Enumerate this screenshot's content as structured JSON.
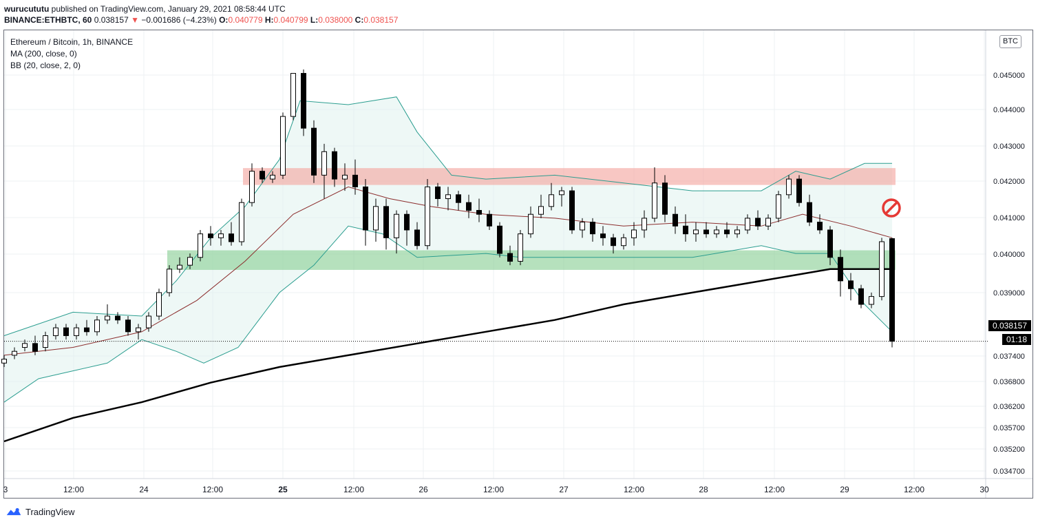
{
  "header": {
    "author": "wurucututu",
    "published_text": "published on TradingView.com, January 29, 2021 08:58:44 UTC",
    "symbol": "BINANCE:ETHBTC, 60",
    "last": "0.038157",
    "arrow": "▼",
    "change": "−0.001686 (−4.23%)",
    "o_label": "O:",
    "o_value": "0.040779",
    "h_label": "H:",
    "h_value": "0.040799",
    "l_label": "L:",
    "l_value": "0.038000",
    "c_label": "C:",
    "c_value": "0.038157"
  },
  "legend": {
    "title": "Ethereum / Bitcoin, 1h, BINANCE",
    "ma": "MA (200, close, 0)",
    "bb": "BB (20, close, 2, 0)"
  },
  "currency_badge": "BTC",
  "price_tag": "0.038157",
  "countdown": "01:18",
  "footer": {
    "brand": "TradingView"
  },
  "colors": {
    "up": "#ffffff",
    "down": "#000000",
    "ma": "#000000",
    "bb_basis": "#8b2c2c",
    "bb_band": "#2a9d8f",
    "bb_fill": "#e0f2ef",
    "resistance_zone": "#f4a9a3",
    "support_zone": "#8fd19a",
    "no_entry": "#e53935"
  },
  "chart_data": {
    "type": "candlestick",
    "title": "Ethereum / Bitcoin, 1h, BINANCE",
    "x_ticks": [
      "3",
      "12:00",
      "24",
      "12:00",
      "25",
      "12:00",
      "26",
      "12:00",
      "27",
      "12:00",
      "28",
      "12:00",
      "29",
      "12:00",
      "30"
    ],
    "y_ticks": [
      "0.045000",
      "0.044000",
      "0.043000",
      "0.042000",
      "0.041000",
      "0.040000",
      "0.039000",
      "0.037400",
      "0.036800",
      "0.036200",
      "0.035700",
      "0.035200",
      "0.034700"
    ],
    "ylim": [
      0.0344,
      0.0462
    ],
    "last_price": 0.038157,
    "zones": [
      {
        "name": "resistance",
        "from": 0.04215,
        "to": 0.04258
      },
      {
        "name": "support",
        "from": 0.03998,
        "to": 0.04048
      }
    ],
    "ma200": [
      [
        0,
        0.0356
      ],
      [
        100,
        0.0362
      ],
      [
        200,
        0.0366
      ],
      [
        300,
        0.0371
      ],
      [
        400,
        0.0375
      ],
      [
        500,
        0.0378
      ],
      [
        600,
        0.0381
      ],
      [
        700,
        0.0384
      ],
      [
        800,
        0.0387
      ],
      [
        900,
        0.0391
      ],
      [
        1000,
        0.0394
      ],
      [
        1100,
        0.0397
      ],
      [
        1200,
        0.04
      ],
      [
        1290,
        0.04
      ]
    ],
    "bb_upper": [
      [
        0,
        0.0383
      ],
      [
        100,
        0.0389
      ],
      [
        200,
        0.0388
      ],
      [
        250,
        0.0397
      ],
      [
        300,
        0.0408
      ],
      [
        350,
        0.0416
      ],
      [
        400,
        0.0428
      ],
      [
        430,
        0.0443
      ],
      [
        500,
        0.0442
      ],
      [
        570,
        0.0444
      ],
      [
        600,
        0.0435
      ],
      [
        650,
        0.0424
      ],
      [
        700,
        0.0423
      ],
      [
        800,
        0.0424
      ],
      [
        900,
        0.0422
      ],
      [
        950,
        0.0421
      ],
      [
        1000,
        0.042
      ],
      [
        1100,
        0.042
      ],
      [
        1150,
        0.0425
      ],
      [
        1200,
        0.0423
      ],
      [
        1250,
        0.0427
      ],
      [
        1290,
        0.0427
      ]
    ],
    "bb_lower": [
      [
        0,
        0.0366
      ],
      [
        50,
        0.0372
      ],
      [
        100,
        0.0374
      ],
      [
        150,
        0.0376
      ],
      [
        200,
        0.0382
      ],
      [
        250,
        0.0379
      ],
      [
        290,
        0.0376
      ],
      [
        340,
        0.038
      ],
      [
        400,
        0.0394
      ],
      [
        450,
        0.0401
      ],
      [
        500,
        0.0411
      ],
      [
        550,
        0.0409
      ],
      [
        600,
        0.0403
      ],
      [
        700,
        0.0404
      ],
      [
        750,
        0.0403
      ],
      [
        850,
        0.0403
      ],
      [
        900,
        0.0403
      ],
      [
        1000,
        0.0403
      ],
      [
        1100,
        0.0406
      ],
      [
        1150,
        0.0404
      ],
      [
        1200,
        0.0404
      ],
      [
        1250,
        0.0391
      ],
      [
        1290,
        0.0384
      ]
    ],
    "bb_basis": [
      [
        0,
        0.0378
      ],
      [
        100,
        0.038
      ],
      [
        200,
        0.0384
      ],
      [
        280,
        0.0392
      ],
      [
        350,
        0.0402
      ],
      [
        420,
        0.0414
      ],
      [
        500,
        0.0421
      ],
      [
        560,
        0.0418
      ],
      [
        620,
        0.0416
      ],
      [
        700,
        0.0414
      ],
      [
        800,
        0.0413
      ],
      [
        900,
        0.0411
      ],
      [
        1000,
        0.0412
      ],
      [
        1100,
        0.0411
      ],
      [
        1160,
        0.0414
      ],
      [
        1230,
        0.0411
      ],
      [
        1290,
        0.0408
      ]
    ],
    "candles": [
      [
        0,
        0.0376,
        0.0378,
        0.0375,
        0.0377
      ],
      [
        15,
        0.0378,
        0.038,
        0.0377,
        0.0379
      ],
      [
        30,
        0.038,
        0.0382,
        0.0379,
        0.0381
      ],
      [
        45,
        0.0381,
        0.0383,
        0.0378,
        0.0379
      ],
      [
        60,
        0.038,
        0.0384,
        0.0379,
        0.0383
      ],
      [
        75,
        0.0383,
        0.0386,
        0.0382,
        0.0385
      ],
      [
        90,
        0.0385,
        0.0386,
        0.0382,
        0.0383
      ],
      [
        105,
        0.0383,
        0.0386,
        0.0382,
        0.0385
      ],
      [
        120,
        0.0385,
        0.0387,
        0.0383,
        0.0384
      ],
      [
        135,
        0.0384,
        0.0388,
        0.0383,
        0.0387
      ],
      [
        150,
        0.0387,
        0.0391,
        0.0386,
        0.0388
      ],
      [
        165,
        0.0388,
        0.0389,
        0.0386,
        0.0387
      ],
      [
        180,
        0.0387,
        0.0388,
        0.0383,
        0.0384
      ],
      [
        195,
        0.0384,
        0.0386,
        0.0382,
        0.0385
      ],
      [
        210,
        0.0385,
        0.0389,
        0.0384,
        0.0388
      ],
      [
        225,
        0.0388,
        0.0395,
        0.0387,
        0.0394
      ],
      [
        240,
        0.0394,
        0.0401,
        0.0393,
        0.04
      ],
      [
        255,
        0.04,
        0.0403,
        0.0399,
        0.0401
      ],
      [
        270,
        0.0401,
        0.0404,
        0.04,
        0.0403
      ],
      [
        285,
        0.0403,
        0.041,
        0.0402,
        0.0409
      ],
      [
        300,
        0.0409,
        0.0411,
        0.0406,
        0.0408
      ],
      [
        315,
        0.0408,
        0.041,
        0.0406,
        0.0409
      ],
      [
        330,
        0.0409,
        0.0412,
        0.0406,
        0.0407
      ],
      [
        345,
        0.0407,
        0.0418,
        0.0406,
        0.0417
      ],
      [
        360,
        0.0417,
        0.0427,
        0.0416,
        0.0425
      ],
      [
        375,
        0.0425,
        0.0426,
        0.0422,
        0.0423
      ],
      [
        390,
        0.0423,
        0.0425,
        0.0422,
        0.0424
      ],
      [
        405,
        0.0424,
        0.044,
        0.0423,
        0.0439
      ],
      [
        420,
        0.0439,
        0.045,
        0.0438,
        0.045
      ],
      [
        435,
        0.045,
        0.0451,
        0.0434,
        0.0436
      ],
      [
        450,
        0.0436,
        0.0438,
        0.0422,
        0.0424
      ],
      [
        465,
        0.0424,
        0.0432,
        0.0418,
        0.043
      ],
      [
        480,
        0.043,
        0.0431,
        0.0421,
        0.0423
      ],
      [
        495,
        0.0423,
        0.0427,
        0.042,
        0.0424
      ],
      [
        510,
        0.0424,
        0.0428,
        0.0419,
        0.0421
      ],
      [
        525,
        0.0421,
        0.0423,
        0.0406,
        0.041
      ],
      [
        540,
        0.041,
        0.0418,
        0.0407,
        0.0416
      ],
      [
        555,
        0.0416,
        0.0418,
        0.0405,
        0.0408
      ],
      [
        570,
        0.0408,
        0.0415,
        0.0404,
        0.0414
      ],
      [
        585,
        0.0414,
        0.0415,
        0.0406,
        0.041
      ],
      [
        600,
        0.041,
        0.0412,
        0.0405,
        0.0406
      ],
      [
        615,
        0.0406,
        0.0423,
        0.0405,
        0.0421
      ],
      [
        630,
        0.0421,
        0.0422,
        0.0416,
        0.0418
      ],
      [
        645,
        0.0418,
        0.0421,
        0.0415,
        0.0419
      ],
      [
        660,
        0.0419,
        0.042,
        0.0415,
        0.0417
      ],
      [
        675,
        0.0417,
        0.0419,
        0.0413,
        0.0415
      ],
      [
        690,
        0.0415,
        0.0418,
        0.0412,
        0.0414
      ],
      [
        705,
        0.0414,
        0.0415,
        0.041,
        0.0411
      ],
      [
        720,
        0.0411,
        0.0412,
        0.0403,
        0.0404
      ],
      [
        735,
        0.0404,
        0.0406,
        0.0401,
        0.0402
      ],
      [
        750,
        0.0402,
        0.041,
        0.0401,
        0.0409
      ],
      [
        765,
        0.0409,
        0.0416,
        0.0408,
        0.0414
      ],
      [
        780,
        0.0414,
        0.0419,
        0.0413,
        0.0416
      ],
      [
        795,
        0.0416,
        0.0422,
        0.0415,
        0.0419
      ],
      [
        810,
        0.0419,
        0.0421,
        0.0416,
        0.042
      ],
      [
        825,
        0.042,
        0.0421,
        0.0409,
        0.041
      ],
      [
        840,
        0.041,
        0.0413,
        0.0408,
        0.0412
      ],
      [
        855,
        0.0412,
        0.0413,
        0.0407,
        0.0409
      ],
      [
        870,
        0.0409,
        0.0411,
        0.0406,
        0.0408
      ],
      [
        885,
        0.0408,
        0.0409,
        0.0404,
        0.0406
      ],
      [
        900,
        0.0406,
        0.0409,
        0.0405,
        0.0408
      ],
      [
        915,
        0.0408,
        0.0412,
        0.0406,
        0.041
      ],
      [
        930,
        0.041,
        0.0415,
        0.0408,
        0.0413
      ],
      [
        945,
        0.0413,
        0.0426,
        0.0412,
        0.0422
      ],
      [
        960,
        0.0422,
        0.0424,
        0.0412,
        0.0414
      ],
      [
        975,
        0.0414,
        0.0416,
        0.0409,
        0.0411
      ],
      [
        990,
        0.0411,
        0.0414,
        0.0407,
        0.0409
      ],
      [
        1005,
        0.0409,
        0.0412,
        0.0407,
        0.041
      ],
      [
        1020,
        0.041,
        0.0412,
        0.0408,
        0.0409
      ],
      [
        1035,
        0.0409,
        0.0411,
        0.0408,
        0.041
      ],
      [
        1050,
        0.041,
        0.0412,
        0.0408,
        0.0409
      ],
      [
        1065,
        0.0409,
        0.0411,
        0.0408,
        0.041
      ],
      [
        1080,
        0.041,
        0.0414,
        0.0409,
        0.0413
      ],
      [
        1095,
        0.0413,
        0.0415,
        0.041,
        0.0411
      ],
      [
        1110,
        0.0411,
        0.0414,
        0.041,
        0.0413
      ],
      [
        1125,
        0.0413,
        0.042,
        0.0412,
        0.0419
      ],
      [
        1140,
        0.0419,
        0.0424,
        0.0418,
        0.0423
      ],
      [
        1155,
        0.0423,
        0.0424,
        0.0416,
        0.0417
      ],
      [
        1170,
        0.0417,
        0.0419,
        0.0411,
        0.0412
      ],
      [
        1185,
        0.0412,
        0.0414,
        0.0409,
        0.041
      ],
      [
        1200,
        0.041,
        0.0411,
        0.0401,
        0.0403
      ],
      [
        1215,
        0.0403,
        0.0405,
        0.0393,
        0.0397
      ],
      [
        1230,
        0.0397,
        0.0399,
        0.0392,
        0.0395
      ],
      [
        1245,
        0.0395,
        0.0396,
        0.039,
        0.0391
      ],
      [
        1260,
        0.0391,
        0.0394,
        0.039,
        0.0393
      ],
      [
        1275,
        0.0393,
        0.0408,
        0.0392,
        0.0407
      ],
      [
        1290,
        0.040779,
        0.040799,
        0.038,
        0.038157
      ]
    ]
  }
}
